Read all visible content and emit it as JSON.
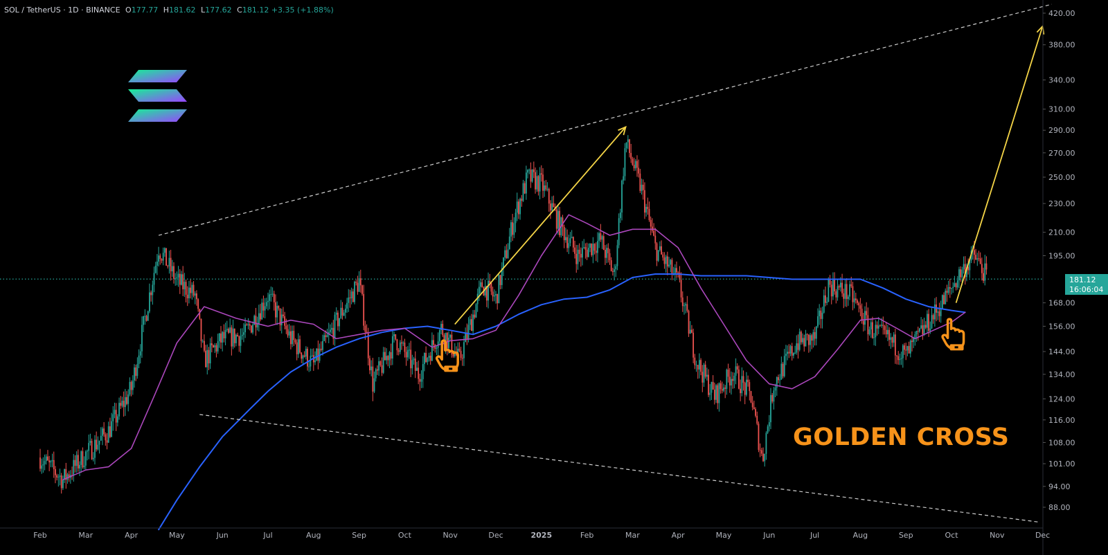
{
  "header": {
    "symbol": "SOL / TetherUS · 1D · BINANCE",
    "open_label": "O",
    "open": "177.77",
    "high_label": "H",
    "high": "181.62",
    "low_label": "L",
    "low": "177.62",
    "close_label": "C",
    "close": "181.12",
    "change": "+3.35 (+1.88%)"
  },
  "annotation": {
    "text": "GOLDEN CROSS",
    "color": "#f7931a"
  },
  "price_tag": {
    "price": "181.12",
    "countdown": "16:06:04",
    "color": "#26a69a"
  },
  "colors": {
    "up": "#26a69a",
    "down": "#ef5350",
    "ma_fast": "#ab47bc",
    "ma_slow": "#2962ff",
    "arrows": "#f5d547",
    "trend": "#cfcfcf",
    "hand": "#f7931a"
  },
  "icons": [
    "solana-logo",
    "pointing-hand-icon",
    "pointing-hand-icon"
  ],
  "chart_data": {
    "type": "candlestick",
    "scale": "log",
    "symbol": "SOL / TetherUS",
    "interval": "1D",
    "exchange": "BINANCE",
    "x": [
      "Feb",
      "Mar",
      "Apr",
      "May",
      "Jun",
      "Jul",
      "Aug",
      "Sep",
      "Oct",
      "Nov",
      "Dec",
      "2025",
      "Feb",
      "Mar",
      "Apr",
      "May",
      "Jun",
      "Jul",
      "Aug",
      "Sep",
      "Oct",
      "Nov",
      "Dec"
    ],
    "y_ticks": [
      "420.00",
      "380.00",
      "340.00",
      "310.00",
      "290.00",
      "270.00",
      "250.00",
      "230.00",
      "210.00",
      "195.00",
      "181.12",
      "168.00",
      "156.00",
      "144.00",
      "134.00",
      "124.00",
      "116.00",
      "108.00",
      "101.00",
      "94.00",
      "88.00"
    ],
    "y_tick_values": [
      420,
      380,
      340,
      310,
      290,
      270,
      250,
      230,
      210,
      195,
      168,
      156,
      144,
      134,
      124,
      116,
      108,
      101,
      94,
      88
    ],
    "ylim": [
      82,
      432
    ],
    "current_price": 181.12,
    "price_path": [
      {
        "m": 0.0,
        "p": 103
      },
      {
        "m": 0.5,
        "p": 96
      },
      {
        "m": 1.0,
        "p": 104
      },
      {
        "m": 1.5,
        "p": 112
      },
      {
        "m": 2.0,
        "p": 128
      },
      {
        "m": 2.6,
        "p": 200
      },
      {
        "m": 3.0,
        "p": 180
      },
      {
        "m": 3.4,
        "p": 172
      },
      {
        "m": 3.6,
        "p": 140
      },
      {
        "m": 4.0,
        "p": 150
      },
      {
        "m": 4.5,
        "p": 152
      },
      {
        "m": 5.0,
        "p": 172
      },
      {
        "m": 5.5,
        "p": 150
      },
      {
        "m": 6.0,
        "p": 138
      },
      {
        "m": 6.5,
        "p": 158
      },
      {
        "m": 7.0,
        "p": 180
      },
      {
        "m": 7.3,
        "p": 130
      },
      {
        "m": 7.8,
        "p": 150
      },
      {
        "m": 8.3,
        "p": 134
      },
      {
        "m": 8.8,
        "p": 155
      },
      {
        "m": 9.2,
        "p": 140
      },
      {
        "m": 9.7,
        "p": 178
      },
      {
        "m": 10.0,
        "p": 170
      },
      {
        "m": 10.4,
        "p": 220
      },
      {
        "m": 10.7,
        "p": 250
      },
      {
        "m": 11.0,
        "p": 245
      },
      {
        "m": 11.4,
        "p": 215
      },
      {
        "m": 11.8,
        "p": 195
      },
      {
        "m": 12.3,
        "p": 205
      },
      {
        "m": 12.6,
        "p": 183
      },
      {
        "m": 12.85,
        "p": 280
      },
      {
        "m": 13.2,
        "p": 240
      },
      {
        "m": 13.5,
        "p": 200
      },
      {
        "m": 14.0,
        "p": 180
      },
      {
        "m": 14.4,
        "p": 140
      },
      {
        "m": 14.8,
        "p": 125
      },
      {
        "m": 15.2,
        "p": 135
      },
      {
        "m": 15.6,
        "p": 125
      },
      {
        "m": 15.85,
        "p": 102
      },
      {
        "m": 16.1,
        "p": 130
      },
      {
        "m": 16.6,
        "p": 148
      },
      {
        "m": 17.0,
        "p": 150
      },
      {
        "m": 17.3,
        "p": 178
      },
      {
        "m": 17.8,
        "p": 172
      },
      {
        "m": 18.2,
        "p": 155
      },
      {
        "m": 18.6,
        "p": 150
      },
      {
        "m": 19.0,
        "p": 142
      },
      {
        "m": 19.4,
        "p": 155
      },
      {
        "m": 19.8,
        "p": 168
      },
      {
        "m": 20.2,
        "p": 185
      },
      {
        "m": 20.5,
        "p": 195
      },
      {
        "m": 20.8,
        "p": 181
      }
    ],
    "ma_fast": [
      {
        "m": 0.5,
        "p": 96
      },
      {
        "m": 1.0,
        "p": 99
      },
      {
        "m": 1.5,
        "p": 100
      },
      {
        "m": 2.0,
        "p": 106
      },
      {
        "m": 2.5,
        "p": 125
      },
      {
        "m": 3.0,
        "p": 148
      },
      {
        "m": 3.6,
        "p": 166
      },
      {
        "m": 4.3,
        "p": 160
      },
      {
        "m": 5.0,
        "p": 156
      },
      {
        "m": 5.5,
        "p": 159
      },
      {
        "m": 6.0,
        "p": 157
      },
      {
        "m": 6.5,
        "p": 150
      },
      {
        "m": 7.0,
        "p": 152
      },
      {
        "m": 7.5,
        "p": 154
      },
      {
        "m": 8.0,
        "p": 155
      },
      {
        "m": 8.6,
        "p": 146
      },
      {
        "m": 9.0,
        "p": 149
      },
      {
        "m": 9.5,
        "p": 150
      },
      {
        "m": 10.0,
        "p": 154
      },
      {
        "m": 10.5,
        "p": 172
      },
      {
        "m": 11.0,
        "p": 195
      },
      {
        "m": 11.6,
        "p": 222
      },
      {
        "m": 12.0,
        "p": 216
      },
      {
        "m": 12.5,
        "p": 208
      },
      {
        "m": 13.0,
        "p": 212
      },
      {
        "m": 13.5,
        "p": 212
      },
      {
        "m": 14.0,
        "p": 200
      },
      {
        "m": 14.5,
        "p": 176
      },
      {
        "m": 15.0,
        "p": 157
      },
      {
        "m": 15.5,
        "p": 140
      },
      {
        "m": 16.0,
        "p": 130
      },
      {
        "m": 16.5,
        "p": 128
      },
      {
        "m": 17.0,
        "p": 133
      },
      {
        "m": 17.5,
        "p": 145
      },
      {
        "m": 18.0,
        "p": 159
      },
      {
        "m": 18.4,
        "p": 160
      },
      {
        "m": 18.8,
        "p": 155
      },
      {
        "m": 19.2,
        "p": 150
      },
      {
        "m": 19.6,
        "p": 154
      },
      {
        "m": 20.0,
        "p": 158
      },
      {
        "m": 20.3,
        "p": 163
      }
    ],
    "ma_slow": [
      {
        "m": 2.6,
        "p": 82
      },
      {
        "m": 3.0,
        "p": 90
      },
      {
        "m": 3.5,
        "p": 100
      },
      {
        "m": 4.0,
        "p": 110
      },
      {
        "m": 4.6,
        "p": 120
      },
      {
        "m": 5.0,
        "p": 127
      },
      {
        "m": 5.5,
        "p": 135
      },
      {
        "m": 6.0,
        "p": 141
      },
      {
        "m": 6.5,
        "p": 146
      },
      {
        "m": 7.0,
        "p": 150
      },
      {
        "m": 7.5,
        "p": 153
      },
      {
        "m": 8.0,
        "p": 155
      },
      {
        "m": 8.5,
        "p": 156
      },
      {
        "m": 9.0,
        "p": 154
      },
      {
        "m": 9.5,
        "p": 152
      },
      {
        "m": 10.0,
        "p": 156
      },
      {
        "m": 10.5,
        "p": 162
      },
      {
        "m": 11.0,
        "p": 167
      },
      {
        "m": 11.5,
        "p": 170
      },
      {
        "m": 12.0,
        "p": 171
      },
      {
        "m": 12.5,
        "p": 175
      },
      {
        "m": 13.0,
        "p": 182
      },
      {
        "m": 13.5,
        "p": 184
      },
      {
        "m": 14.0,
        "p": 184
      },
      {
        "m": 14.5,
        "p": 183
      },
      {
        "m": 15.0,
        "p": 183
      },
      {
        "m": 15.5,
        "p": 183
      },
      {
        "m": 16.0,
        "p": 182
      },
      {
        "m": 16.5,
        "p": 181
      },
      {
        "m": 17.0,
        "p": 181
      },
      {
        "m": 17.5,
        "p": 181
      },
      {
        "m": 18.0,
        "p": 181
      },
      {
        "m": 18.5,
        "p": 176
      },
      {
        "m": 19.0,
        "p": 170
      },
      {
        "m": 19.5,
        "p": 166
      },
      {
        "m": 20.0,
        "p": 164
      },
      {
        "m": 20.3,
        "p": 163
      }
    ],
    "trendlines": [
      {
        "style": "dashed",
        "from": {
          "m": 2.6,
          "p": 208
        },
        "to": {
          "m": 22.2,
          "p": 432
        }
      },
      {
        "style": "dashed",
        "from": {
          "m": 3.5,
          "p": 118
        },
        "to": {
          "m": 21.9,
          "p": 84
        }
      }
    ],
    "arrows": [
      {
        "from": {
          "m": 9.1,
          "p": 157
        },
        "to": {
          "m": 12.85,
          "p": 293
        }
      },
      {
        "from": {
          "m": 20.1,
          "p": 168
        },
        "to": {
          "m": 22.0,
          "p": 403
        }
      }
    ],
    "markers": [
      {
        "icon": "pointing-hand-icon",
        "m": 9.0,
        "p": 142
      },
      {
        "icon": "pointing-hand-icon",
        "m": 20.1,
        "p": 152
      }
    ]
  }
}
